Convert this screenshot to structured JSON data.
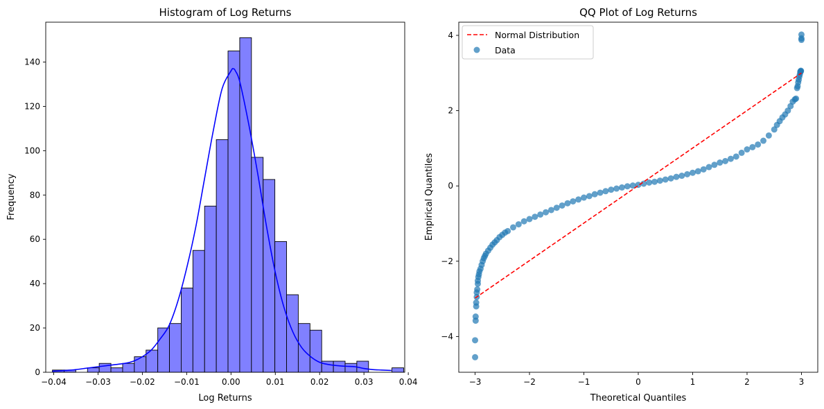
{
  "chart_data": [
    {
      "type": "bar",
      "title": "Histogram of Log Returns",
      "xlabel": "Log Returns",
      "ylabel": "Frequency",
      "xlim": [
        -0.0418,
        0.0392
      ],
      "ylim": [
        0,
        158
      ],
      "xticks": [
        -0.04,
        -0.03,
        -0.02,
        -0.01,
        0.0,
        0.01,
        0.02,
        0.03,
        0.04
      ],
      "xtick_labels": [
        "−0.04",
        "−0.03",
        "−0.02",
        "−0.01",
        "0.00",
        "0.01",
        "0.02",
        "0.03",
        "0.04"
      ],
      "yticks": [
        0,
        20,
        40,
        60,
        80,
        100,
        120,
        140
      ],
      "ytick_labels": [
        "0",
        "20",
        "40",
        "60",
        "80",
        "100",
        "120",
        "140"
      ],
      "bin_start": -0.0403,
      "bin_width": 0.002642,
      "counts": [
        1,
        1,
        0,
        2,
        4,
        2,
        4,
        7,
        10,
        20,
        22,
        38,
        55,
        75,
        105,
        145,
        151,
        97,
        87,
        59,
        35,
        22,
        19,
        5,
        5,
        4,
        5,
        0,
        0,
        2
      ],
      "bar_color": "#8080ff",
      "kde_color": "#0000ff",
      "kde": {
        "x": [
          -0.0403,
          -0.036,
          -0.032,
          -0.028,
          -0.024,
          -0.022,
          -0.02,
          -0.018,
          -0.016,
          -0.014,
          -0.012,
          -0.01,
          -0.008,
          -0.006,
          -0.004,
          -0.002,
          0.0,
          0.0005,
          0.001,
          0.002,
          0.004,
          0.006,
          0.008,
          0.01,
          0.012,
          0.014,
          0.016,
          0.018,
          0.02,
          0.022,
          0.024,
          0.026,
          0.028,
          0.03,
          0.032,
          0.034,
          0.0362
        ],
        "y": [
          0.5,
          1,
          2,
          3,
          4,
          5,
          7,
          10,
          15,
          21,
          32,
          47,
          65,
          87,
          109,
          128,
          136,
          137,
          136,
          131,
          112,
          90,
          66,
          45,
          29,
          18,
          11,
          7,
          4.5,
          3.5,
          3,
          2.7,
          2.5,
          1.7,
          1.2,
          1,
          0.8
        ]
      }
    },
    {
      "type": "scatter",
      "title": "QQ Plot of Log Returns",
      "xlabel": "Theoretical Quantiles",
      "ylabel": "Empirical Quantiles",
      "xlim": [
        -3.3,
        3.3
      ],
      "ylim": [
        -4.95,
        4.35
      ],
      "xticks": [
        -3,
        -2,
        -1,
        0,
        1,
        2,
        3
      ],
      "xtick_labels": [
        "−3",
        "−2",
        "−1",
        "0",
        "1",
        "2",
        "3"
      ],
      "yticks": [
        -4,
        -2,
        0,
        2,
        4
      ],
      "ytick_labels": [
        "−4",
        "−2",
        "0",
        "2",
        "4"
      ],
      "legend_position": "top-left",
      "series": [
        {
          "name": "Normal Distribution",
          "kind": "line",
          "style": "dashed",
          "color": "#ff0000",
          "x": [
            -3.0,
            3.0
          ],
          "y": [
            -2.98,
            3.0
          ]
        },
        {
          "name": "Data",
          "kind": "scatter",
          "color": "#1f77b4",
          "x": [
            -3.0,
            -3.0,
            -2.99,
            -2.99,
            -2.98,
            -2.98,
            -2.97,
            -2.97,
            -2.96,
            -2.95,
            -2.95,
            -2.94,
            -2.93,
            -2.92,
            -2.9,
            -2.88,
            -2.86,
            -2.84,
            -2.82,
            -2.8,
            -2.76,
            -2.72,
            -2.68,
            -2.64,
            -2.6,
            -2.55,
            -2.5,
            -2.45,
            -2.4,
            -2.3,
            -2.2,
            -2.1,
            -2.0,
            -1.9,
            -1.8,
            -1.7,
            -1.6,
            -1.5,
            -1.4,
            -1.3,
            -1.2,
            -1.1,
            -1.0,
            -0.9,
            -0.8,
            -0.7,
            -0.6,
            -0.5,
            -0.4,
            -0.3,
            -0.2,
            -0.1,
            0.0,
            0.1,
            0.2,
            0.3,
            0.4,
            0.5,
            0.6,
            0.7,
            0.8,
            0.9,
            1.0,
            1.1,
            1.2,
            1.3,
            1.4,
            1.5,
            1.6,
            1.7,
            1.8,
            1.9,
            2.0,
            2.1,
            2.2,
            2.3,
            2.4,
            2.5,
            2.55,
            2.6,
            2.65,
            2.7,
            2.75,
            2.8,
            2.84,
            2.88,
            2.9,
            2.92,
            2.93,
            2.94,
            2.95,
            2.96,
            2.97,
            2.98,
            2.98,
            2.99,
            2.99,
            3.0,
            3.0,
            3.0
          ],
          "y": [
            -4.55,
            -4.1,
            -3.58,
            -3.47,
            -3.2,
            -3.1,
            -2.95,
            -2.83,
            -2.75,
            -2.6,
            -2.52,
            -2.42,
            -2.35,
            -2.27,
            -2.2,
            -2.1,
            -2.0,
            -1.92,
            -1.86,
            -1.8,
            -1.72,
            -1.64,
            -1.56,
            -1.5,
            -1.44,
            -1.36,
            -1.3,
            -1.24,
            -1.2,
            -1.1,
            -1.02,
            -0.94,
            -0.88,
            -0.82,
            -0.76,
            -0.7,
            -0.64,
            -0.58,
            -0.52,
            -0.46,
            -0.41,
            -0.36,
            -0.31,
            -0.27,
            -0.22,
            -0.18,
            -0.14,
            -0.1,
            -0.07,
            -0.04,
            -0.01,
            0.01,
            0.03,
            0.06,
            0.09,
            0.11,
            0.14,
            0.17,
            0.2,
            0.24,
            0.27,
            0.31,
            0.35,
            0.39,
            0.44,
            0.5,
            0.56,
            0.62,
            0.66,
            0.72,
            0.78,
            0.88,
            0.97,
            1.03,
            1.1,
            1.2,
            1.34,
            1.5,
            1.62,
            1.72,
            1.82,
            1.9,
            2.0,
            2.12,
            2.24,
            2.3,
            2.32,
            2.6,
            2.65,
            2.75,
            2.82,
            2.9,
            2.96,
            3.02,
            3.04,
            3.05,
            3.06,
            3.88,
            3.92,
            4.02
          ]
        }
      ]
    }
  ]
}
